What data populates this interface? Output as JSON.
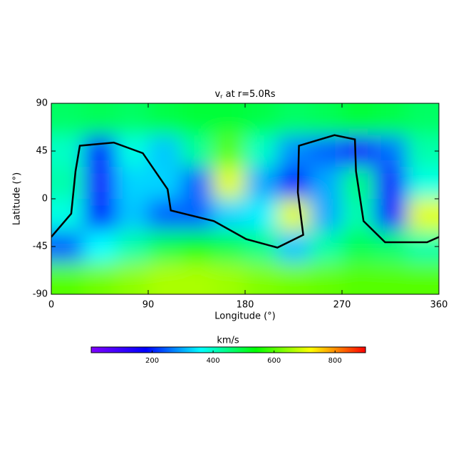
{
  "chart_data": {
    "type": "heatmap",
    "title": {
      "main": "v",
      "sub": "r",
      "rest": " at r=5.0Rs"
    },
    "x_label": "Longitude (°)",
    "y_label": "Latitude (°)",
    "x": [
      15,
      45,
      75,
      105,
      135,
      165,
      195,
      225,
      255,
      285,
      315,
      345
    ],
    "y": [
      75,
      45,
      15,
      -15,
      -45,
      -75
    ],
    "values": [
      [
        470,
        480,
        470,
        490,
        500,
        500,
        490,
        470,
        480,
        500,
        490,
        470
      ],
      [
        400,
        200,
        380,
        320,
        430,
        600,
        400,
        280,
        250,
        150,
        260,
        420
      ],
      [
        420,
        150,
        330,
        330,
        250,
        700,
        300,
        200,
        300,
        450,
        150,
        380
      ],
      [
        380,
        200,
        320,
        250,
        250,
        330,
        350,
        700,
        300,
        420,
        180,
        700
      ],
      [
        250,
        360,
        420,
        480,
        520,
        480,
        440,
        320,
        420,
        480,
        460,
        420
      ],
      [
        600,
        620,
        640,
        660,
        660,
        650,
        630,
        620,
        610,
        600,
        600,
        600
      ]
    ],
    "xlim": [
      0,
      360
    ],
    "xticks": [
      0,
      90,
      180,
      270,
      360
    ],
    "ylim": [
      -90,
      90
    ],
    "yticks": [
      -90,
      -45,
      0,
      45,
      90
    ],
    "neutral_line": {
      "color": "#000000",
      "x": [
        0,
        18.5,
        22.5,
        26.5,
        58,
        85,
        108,
        111,
        151,
        181,
        210,
        234,
        229,
        230,
        263,
        282,
        283,
        290,
        310,
        349,
        360
      ],
      "y": [
        -36,
        -14,
        26,
        50,
        53,
        43,
        9,
        -11,
        -21,
        -38,
        -46,
        -34,
        6,
        50,
        60,
        56,
        26,
        -21,
        -41,
        -41,
        -36
      ]
    },
    "colorbar": {
      "label": "km/s",
      "clim": [
        0,
        900
      ],
      "ticks": [
        200,
        400,
        600,
        800
      ],
      "colormap": [
        "#8000ff",
        "#0000ff",
        "#00ffff",
        "#00ff00",
        "#ffff00",
        "#ff0000"
      ]
    }
  }
}
